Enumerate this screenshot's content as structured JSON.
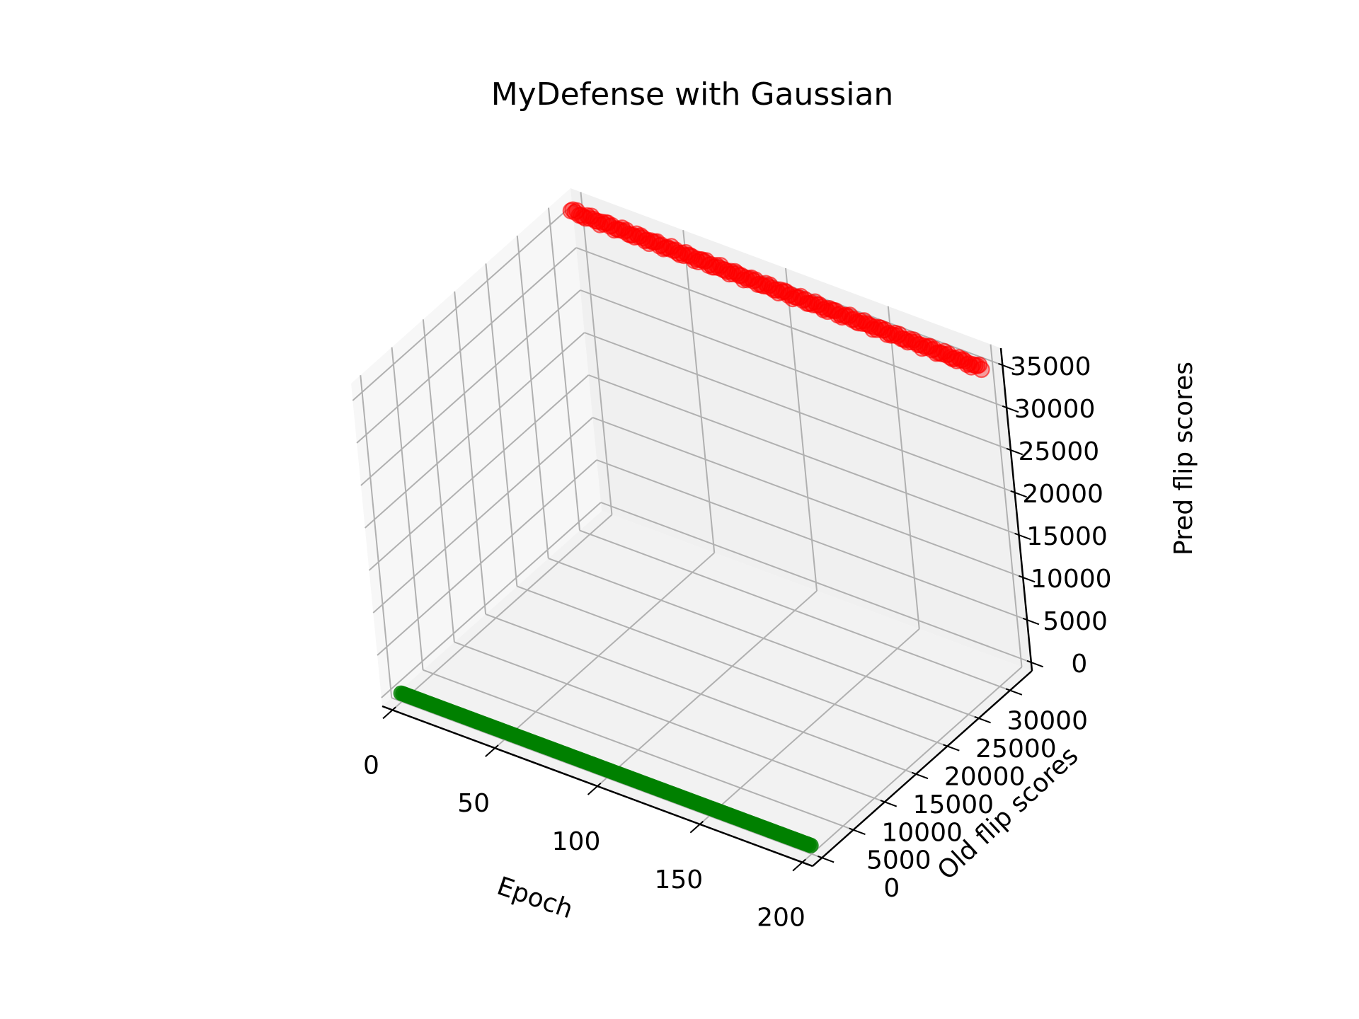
{
  "chart_data": {
    "type": "scatter",
    "projection": "3d",
    "title": "MyDefense with Gaussian",
    "xlabel": "Epoch",
    "ylabel": "Old flip scores",
    "zlabel": "Pred flip scores",
    "xlim": [
      -5,
      205
    ],
    "ylim": [
      -1500,
      33500
    ],
    "zlim": [
      -1000,
      37000
    ],
    "xticks": [
      0,
      50,
      100,
      150,
      200
    ],
    "xtick_labels": [
      "0",
      "50",
      "100",
      "150",
      "200"
    ],
    "yticks": [
      0,
      5000,
      10000,
      15000,
      20000,
      25000,
      30000
    ],
    "ytick_labels": [
      "0",
      "5000",
      "10000",
      "15000",
      "20000",
      "25000",
      "30000"
    ],
    "zticks": [
      0,
      5000,
      10000,
      15000,
      20000,
      25000,
      30000,
      35000
    ],
    "ztick_labels": [
      "0",
      "5000",
      "10000",
      "15000",
      "20000",
      "25000",
      "30000",
      "35000"
    ],
    "grid": true,
    "series": [
      {
        "color": "#008000",
        "x": [
          0,
          200
        ],
        "y": [
          0,
          0
        ],
        "z": [
          0,
          0
        ]
      },
      {
        "color": "#ff0000",
        "x": [
          0,
          200
        ],
        "y": [
          31800,
          31800
        ],
        "z": [
          35900,
          35300
        ]
      }
    ]
  }
}
